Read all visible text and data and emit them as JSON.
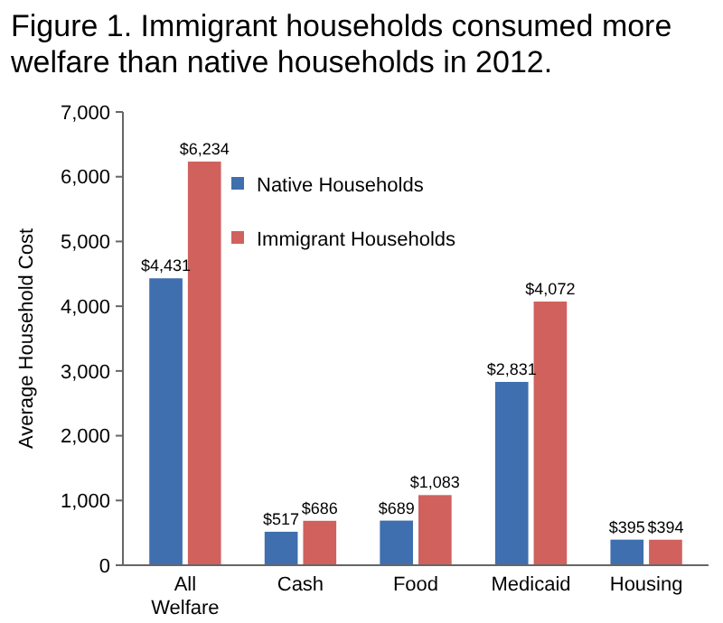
{
  "chart_data": {
    "type": "bar",
    "title": "Figure 1. Immigrant households consumed more welfare than native households in 2012.",
    "ylabel": "Average Household Cost",
    "categories": [
      "All Welfare",
      "Cash",
      "Food",
      "Medicaid",
      "Housing"
    ],
    "series": [
      {
        "name": "Native Households",
        "color": "#3f6fae",
        "values": [
          4431,
          517,
          689,
          2831,
          395
        ],
        "value_labels": [
          "$4,431",
          "$517",
          "$689",
          "$2,831",
          "$395"
        ]
      },
      {
        "name": "Immigrant Households",
        "color": "#d0615c",
        "values": [
          6234,
          686,
          1083,
          4072,
          394
        ],
        "value_labels": [
          "$6,234",
          "$686",
          "$1,083",
          "$4,072",
          "$394"
        ]
      }
    ],
    "ylim": [
      0,
      7000
    ],
    "yticks": [
      {
        "value": 0,
        "label": "0"
      },
      {
        "value": 1000,
        "label": "1,000"
      },
      {
        "value": 2000,
        "label": "2,000"
      },
      {
        "value": 3000,
        "label": "3,000"
      },
      {
        "value": 4000,
        "label": "4,000"
      },
      {
        "value": 5000,
        "label": "5,000"
      },
      {
        "value": 6000,
        "label": "6,000"
      },
      {
        "value": 7000,
        "label": "7,000"
      }
    ],
    "legend": "top"
  }
}
